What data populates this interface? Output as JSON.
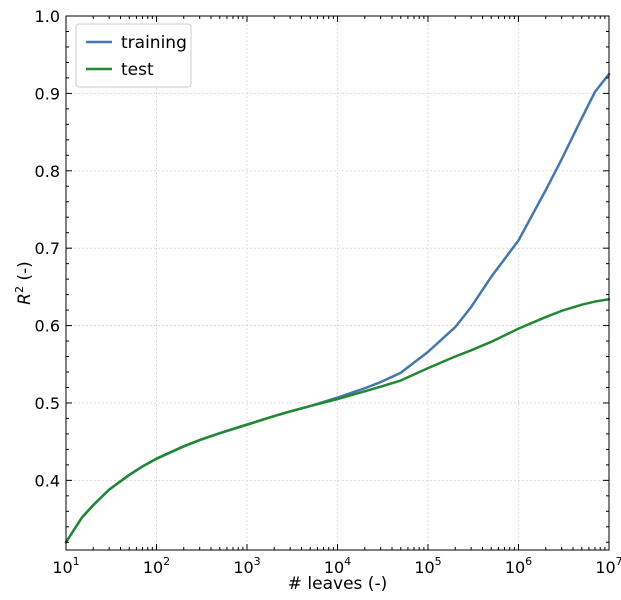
{
  "chart_data": {
    "type": "line",
    "xscale": "log",
    "xlim": [
      10,
      10000000
    ],
    "ylim": [
      0.31,
      1.0
    ],
    "xlabel": "# leaves (-)",
    "ylabel_base": "R",
    "ylabel_sup": "2",
    "ylabel_rest": " (-)",
    "grid": true,
    "legend_position": "top-left",
    "x_ticks": [
      {
        "base": "10",
        "exp": "1",
        "value": 10
      },
      {
        "base": "10",
        "exp": "2",
        "value": 100
      },
      {
        "base": "10",
        "exp": "3",
        "value": 1000
      },
      {
        "base": "10",
        "exp": "4",
        "value": 10000
      },
      {
        "base": "10",
        "exp": "5",
        "value": 100000
      },
      {
        "base": "10",
        "exp": "6",
        "value": 1000000
      },
      {
        "base": "10",
        "exp": "7",
        "value": 10000000
      }
    ],
    "y_ticks": [
      {
        "label": "0.4",
        "value": 0.4
      },
      {
        "label": "0.5",
        "value": 0.5
      },
      {
        "label": "0.6",
        "value": 0.6
      },
      {
        "label": "0.7",
        "value": 0.7
      },
      {
        "label": "0.8",
        "value": 0.8
      },
      {
        "label": "0.9",
        "value": 0.9
      },
      {
        "label": "1.0",
        "value": 1.0
      }
    ],
    "series": [
      {
        "name": "training",
        "color": "#4477aa",
        "points": [
          [
            10,
            0.32
          ],
          [
            15,
            0.352
          ],
          [
            20,
            0.368
          ],
          [
            30,
            0.388
          ],
          [
            50,
            0.407
          ],
          [
            70,
            0.418
          ],
          [
            100,
            0.428
          ],
          [
            200,
            0.444
          ],
          [
            300,
            0.452
          ],
          [
            500,
            0.461
          ],
          [
            1000,
            0.472
          ],
          [
            2000,
            0.483
          ],
          [
            3000,
            0.489
          ],
          [
            5000,
            0.496
          ],
          [
            10000,
            0.507
          ],
          [
            20000,
            0.519
          ],
          [
            30000,
            0.527
          ],
          [
            50000,
            0.539
          ],
          [
            100000,
            0.566
          ],
          [
            200000,
            0.598
          ],
          [
            300000,
            0.624
          ],
          [
            500000,
            0.663
          ],
          [
            1000000,
            0.71
          ],
          [
            2000000,
            0.775
          ],
          [
            3000000,
            0.815
          ],
          [
            5000000,
            0.868
          ],
          [
            7000000,
            0.902
          ],
          [
            10000000,
            0.925
          ]
        ]
      },
      {
        "name": "test",
        "color": "#228833",
        "points": [
          [
            10,
            0.32
          ],
          [
            15,
            0.352
          ],
          [
            20,
            0.368
          ],
          [
            30,
            0.388
          ],
          [
            50,
            0.407
          ],
          [
            70,
            0.418
          ],
          [
            100,
            0.428
          ],
          [
            200,
            0.444
          ],
          [
            300,
            0.452
          ],
          [
            500,
            0.461
          ],
          [
            1000,
            0.472
          ],
          [
            2000,
            0.483
          ],
          [
            3000,
            0.489
          ],
          [
            5000,
            0.496
          ],
          [
            10000,
            0.505
          ],
          [
            20000,
            0.515
          ],
          [
            30000,
            0.521
          ],
          [
            50000,
            0.529
          ],
          [
            100000,
            0.545
          ],
          [
            200000,
            0.56
          ],
          [
            300000,
            0.568
          ],
          [
            500000,
            0.579
          ],
          [
            1000000,
            0.596
          ],
          [
            2000000,
            0.611
          ],
          [
            3000000,
            0.619
          ],
          [
            5000000,
            0.627
          ],
          [
            7000000,
            0.631
          ],
          [
            10000000,
            0.634
          ]
        ]
      }
    ]
  }
}
